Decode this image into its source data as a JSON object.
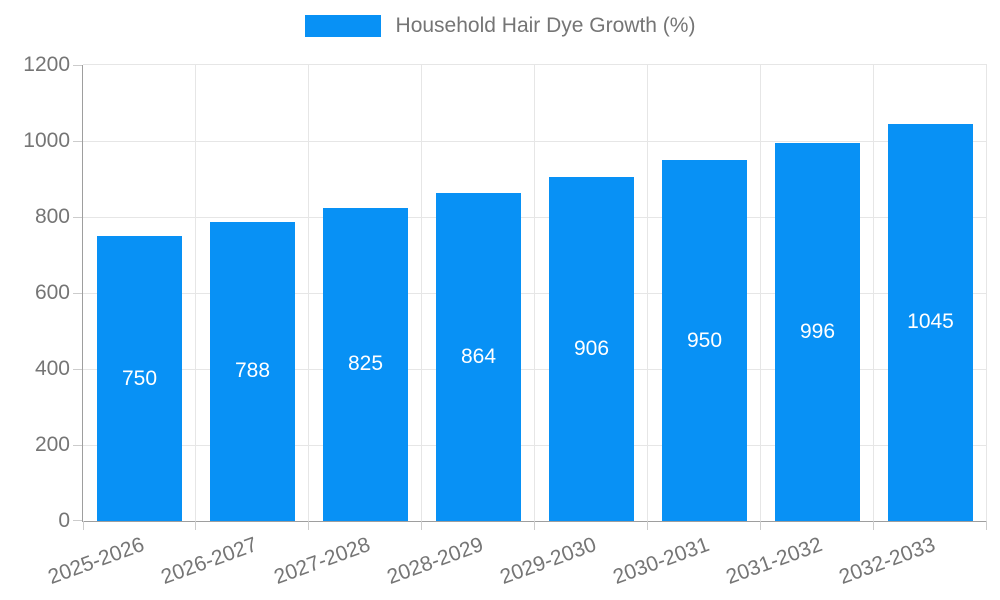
{
  "chart_data": {
    "type": "bar",
    "title": "Household Hair Dye Growth (%)",
    "legend_entries": [
      "Household Hair Dye Growth (%)"
    ],
    "legend_position": "top-center",
    "categories": [
      "2025-2026",
      "2026-2027",
      "2027-2028",
      "2028-2029",
      "2029-2030",
      "2030-2031",
      "2031-2032",
      "2032-2033"
    ],
    "values": [
      750,
      788,
      825,
      864,
      906,
      950,
      996,
      1045
    ],
    "xlabel": "",
    "ylabel": "",
    "ylim": [
      0,
      1200
    ],
    "yticks": [
      0,
      200,
      400,
      600,
      800,
      1000,
      1200
    ],
    "grid": true,
    "value_label_position": "inside-center",
    "bar_width_fraction": 0.75,
    "x_label_rotation_deg": -20,
    "colors": {
      "bar": "#0891f5",
      "value_label": "#ffffff",
      "axis": "#9e9e9e",
      "gridline": "#e6e6e6",
      "tick_mark": "#cccccc",
      "text": "#757575",
      "background": "#ffffff"
    }
  }
}
